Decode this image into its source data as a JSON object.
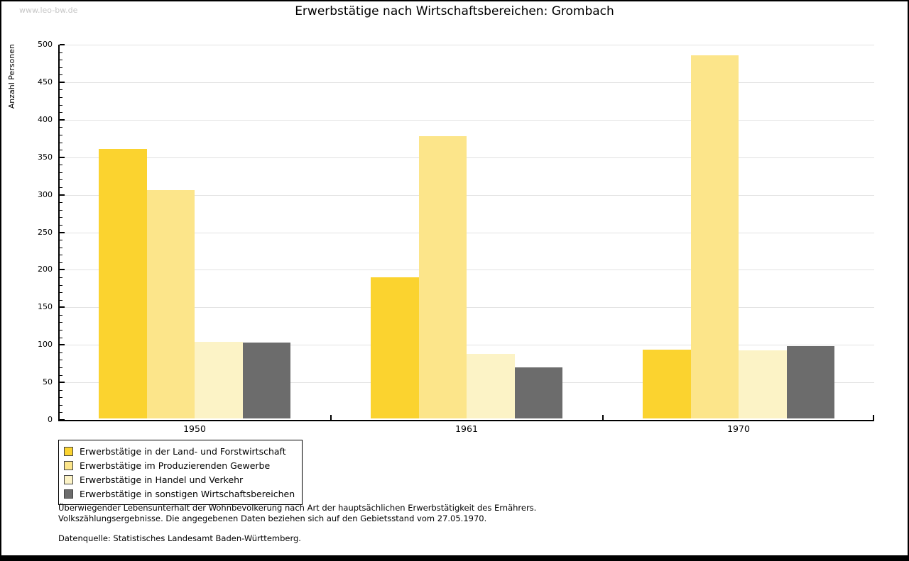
{
  "watermark": "www.leo-bw.de",
  "title": "Erwerbstätige nach Wirtschaftsbereichen: Grombach",
  "chart_data": {
    "type": "bar",
    "title": "Erwerbstätige nach Wirtschaftsbereichen: Grombach",
    "xlabel": "",
    "ylabel": "Anzahl Personen",
    "categories": [
      "1950",
      "1961",
      "1970"
    ],
    "series": [
      {
        "name": "Erwerbstätige in der Land- und Forstwirtschaft",
        "color": "#FBD32F",
        "values": [
          359,
          188,
          92
        ]
      },
      {
        "name": "Erwerbstätige im Produzierenden Gewerbe",
        "color": "#FCE58A",
        "values": [
          304,
          376,
          484
        ]
      },
      {
        "name": "Erwerbstätige in Handel und Verkehr",
        "color": "#FCF3C6",
        "values": [
          102,
          86,
          91
        ]
      },
      {
        "name": "Erwerbstätige in sonstigen Wirtschaftsbereichen",
        "color": "#6C6C6C",
        "values": [
          101,
          68,
          96
        ]
      }
    ],
    "ylim": [
      0,
      500
    ],
    "ytick_step": 50,
    "minor_tick_step": 10,
    "grid": true,
    "legend_position": "bottom-left",
    "colors": {
      "axis": "#000000",
      "gridline": "#e2e2e2",
      "watermark": "#c6c6c6"
    }
  },
  "footer": {
    "line1": "Überwiegender Lebensunterhalt der Wohnbevölkerung nach Art der hauptsächlichen Erwerbstätigkeit des Ernährers.",
    "line2": "Volkszählungsergebnisse. Die angegebenen Daten beziehen sich auf den Gebietsstand vom 27.05.1970.",
    "source": "Datenquelle: Statistisches Landesamt Baden-Württemberg."
  }
}
